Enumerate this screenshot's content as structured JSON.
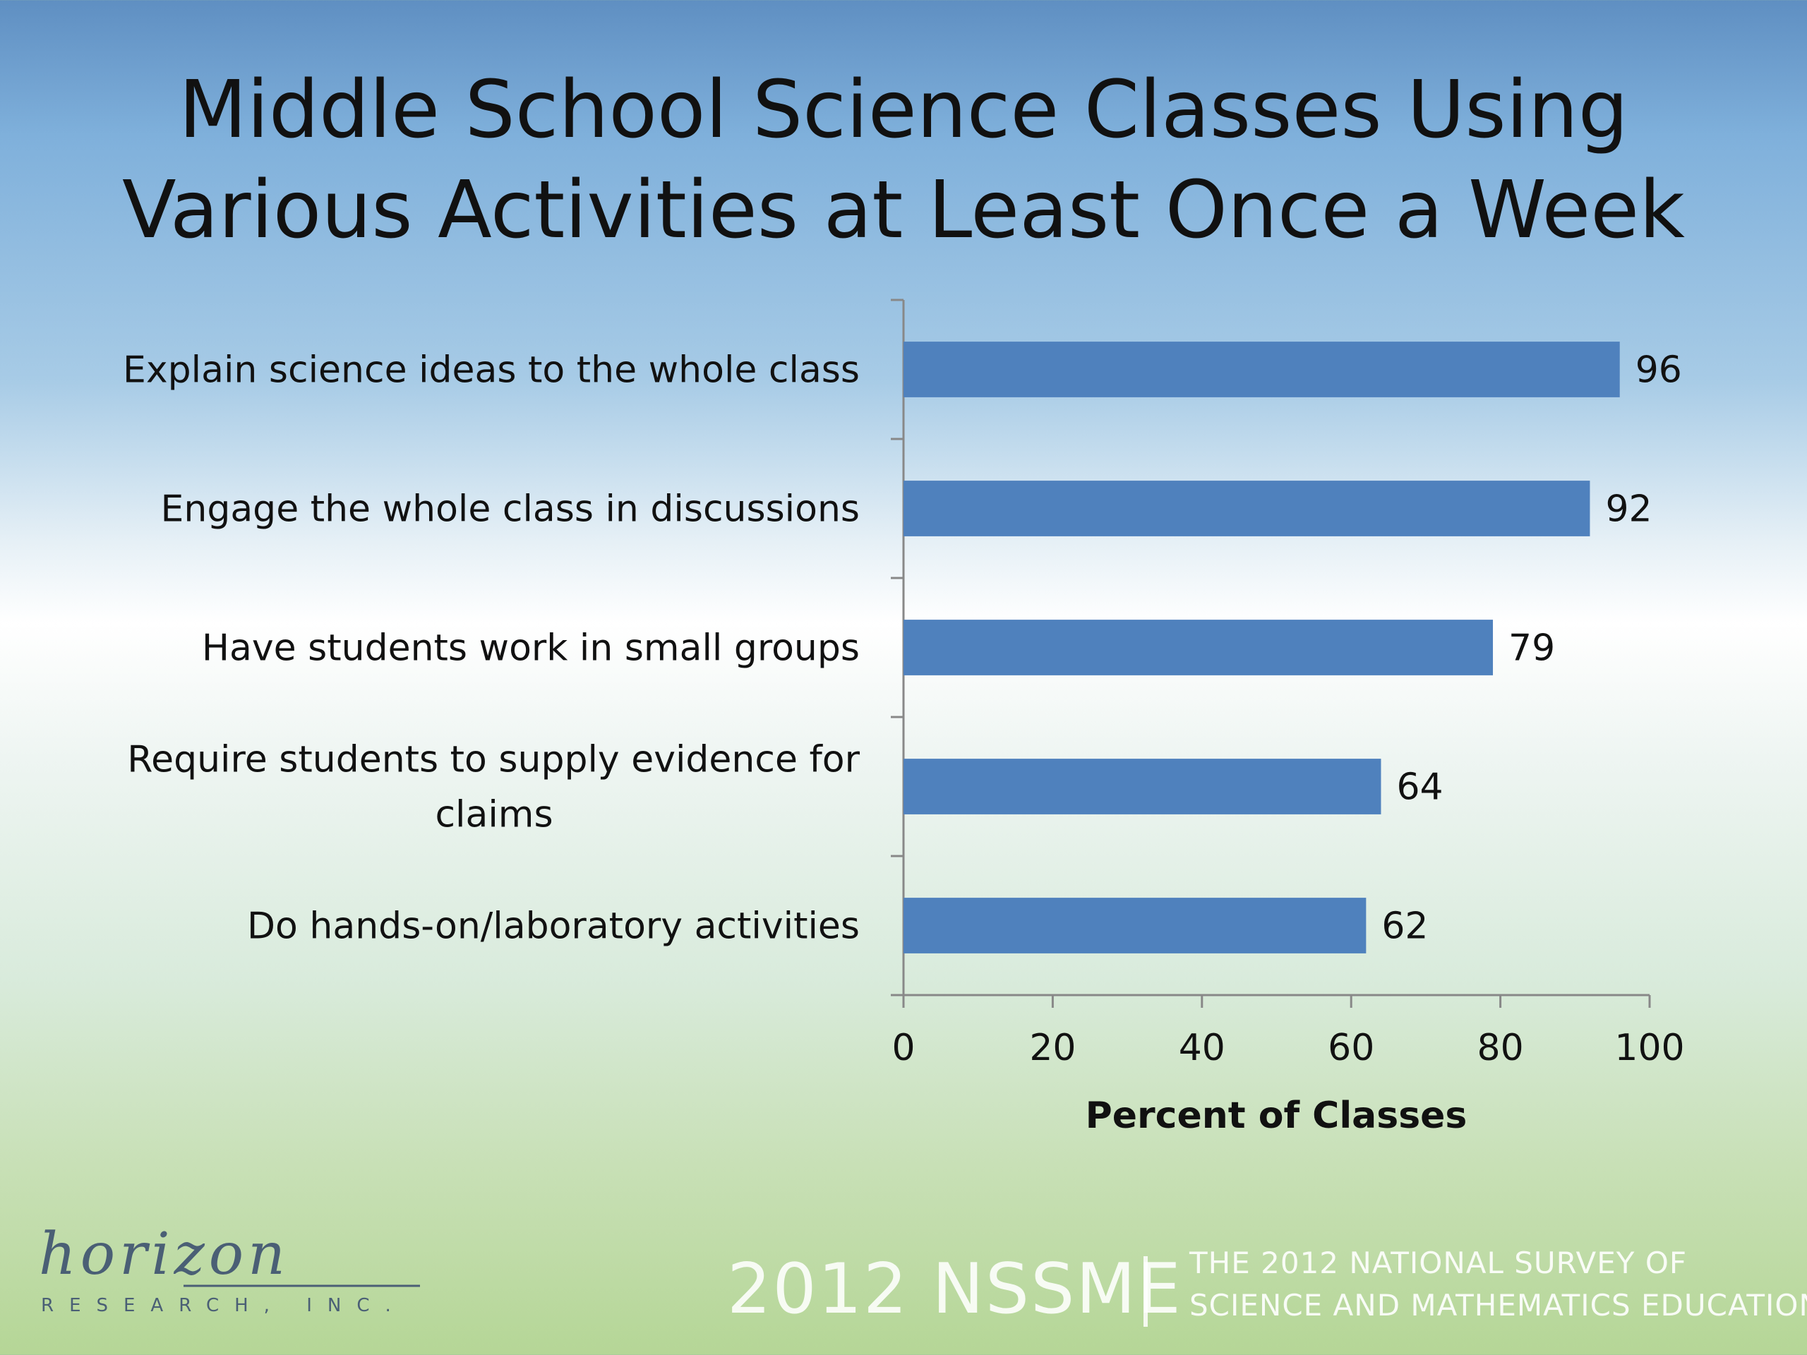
{
  "title": {
    "line1": "Middle School Science Classes Using",
    "line2": "Various Activities at Least Once a Week"
  },
  "chart_data": {
    "type": "bar",
    "orientation": "horizontal",
    "categories": [
      "Explain science ideas to the whole class",
      "Engage the whole class in discussions",
      "Have students work in small groups",
      "Require students to supply evidence for claims",
      "Do hands-on/laboratory activities"
    ],
    "category_lines": [
      [
        "Explain science ideas to the whole class"
      ],
      [
        "Engage the whole class in discussions"
      ],
      [
        "Have students work in small groups"
      ],
      [
        "Require students to supply evidence for",
        "claims"
      ],
      [
        "Do hands-on/laboratory activities"
      ]
    ],
    "values": [
      96,
      92,
      79,
      64,
      62
    ],
    "xlabel": "Percent of Classes",
    "ylabel": "",
    "xlim": [
      0,
      100
    ],
    "xticks": [
      "0",
      "20",
      "40",
      "60",
      "80",
      "100"
    ],
    "grid": false,
    "legend": "none",
    "bar_color": "#4f81bd"
  },
  "footer": {
    "brand": "2012 NSSME",
    "line1": "THE 2012 NATIONAL SURVEY OF",
    "line2": "SCIENCE AND MATHEMATICS EDUCATION"
  },
  "logo": {
    "name": "horizon",
    "sub": "RESEARCH, INC."
  }
}
